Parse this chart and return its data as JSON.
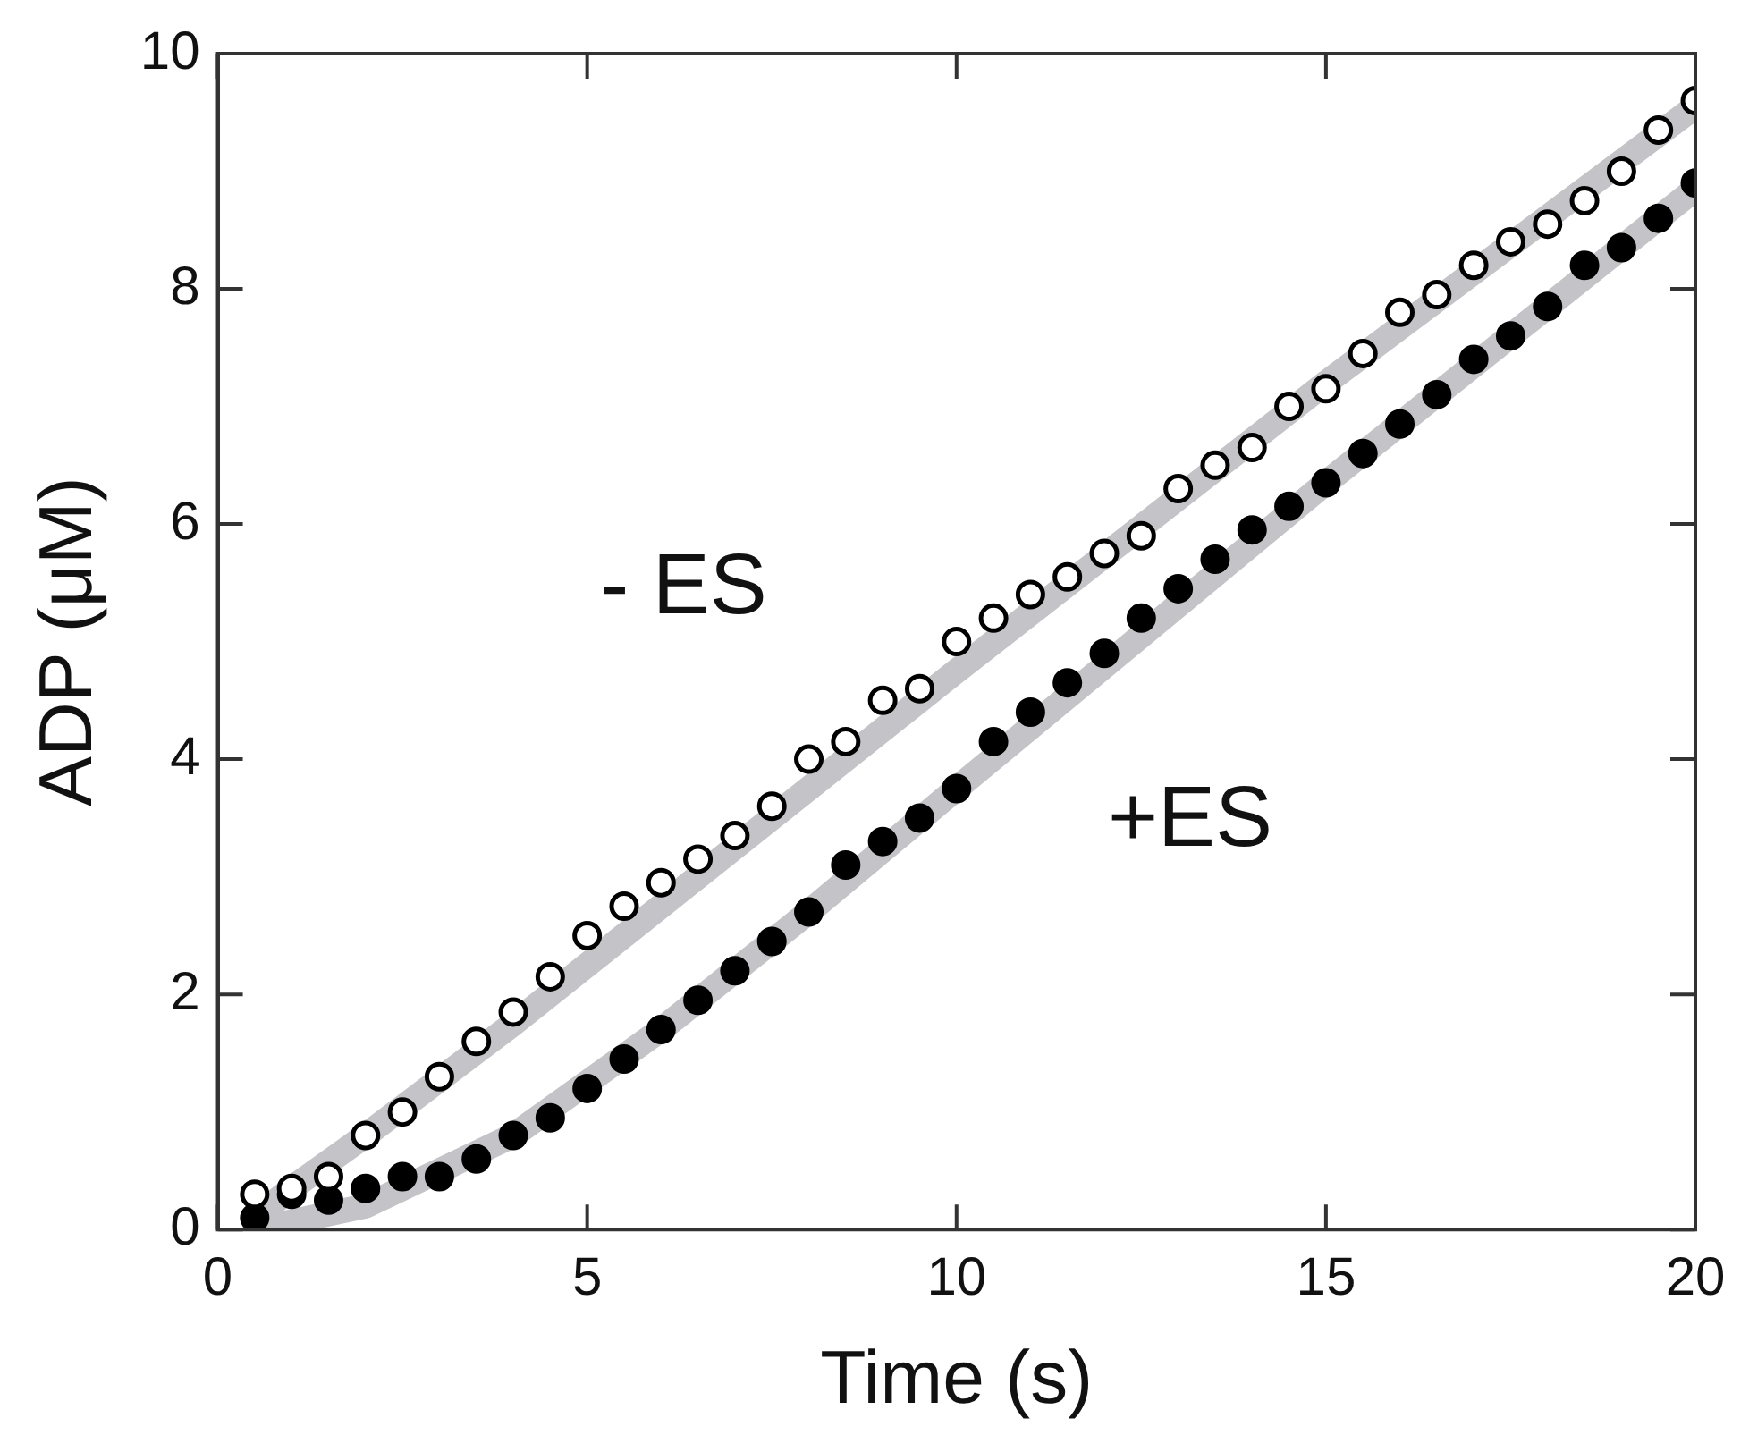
{
  "chart_data": {
    "type": "scatter",
    "xlabel": "Time (s)",
    "ylabel": "ADP (μM)",
    "xlim": [
      0,
      20
    ],
    "xticks": [
      0,
      5,
      10,
      15,
      20
    ],
    "ylim": [
      0,
      10
    ],
    "yticks": [
      0,
      2,
      4,
      6,
      8,
      10
    ],
    "grid": false,
    "legend": false,
    "marker": "circle",
    "series": [
      {
        "type": "line",
        "marker": "none",
        "color": "#c4c4c8",
        "x": [
          0.5,
          1,
          2,
          4,
          10,
          15,
          20
        ],
        "values": [
          0.1,
          0.35,
          0.8,
          1.75,
          4.75,
          7.2,
          9.55
        ]
      },
      {
        "type": "line",
        "marker": "none",
        "color": "#c4c4c8",
        "x": [
          0.5,
          2,
          4,
          6,
          8,
          10,
          15,
          20
        ],
        "values": [
          0,
          0.2,
          0.8,
          1.7,
          2.7,
          3.75,
          6.35,
          8.85
        ]
      },
      {
        "name": "- ES",
        "color": "#ffffff",
        "x": [
          0.5,
          1,
          1.5,
          2,
          2.5,
          3,
          3.5,
          4,
          4.5,
          5,
          5.5,
          6,
          6.5,
          7,
          7.5,
          8,
          8.5,
          9,
          9.5,
          10,
          10.5,
          11,
          11.5,
          12,
          12.5,
          13,
          13.5,
          14,
          14.5,
          15,
          15.5,
          16,
          16.5,
          17,
          17.5,
          18,
          18.5,
          19,
          19.5,
          20
        ],
        "values": [
          0.3,
          0.35,
          0.45,
          0.8,
          1.0,
          1.3,
          1.6,
          1.85,
          2.15,
          2.5,
          2.75,
          2.95,
          3.15,
          3.35,
          3.6,
          4.0,
          4.15,
          4.5,
          4.6,
          5.0,
          5.2,
          5.4,
          5.55,
          5.75,
          5.9,
          6.3,
          6.5,
          6.65,
          7.0,
          7.15,
          7.45,
          7.8,
          7.95,
          8.2,
          8.4,
          8.55,
          8.75,
          9.0,
          9.35,
          9.6
        ]
      },
      {
        "name": "+ES",
        "color": "#000000",
        "x": [
          0.5,
          1,
          1.5,
          2,
          2.5,
          3,
          3.5,
          4,
          4.5,
          5,
          5.5,
          6,
          6.5,
          7,
          7.5,
          8,
          8.5,
          9,
          9.5,
          10,
          10.5,
          11,
          11.5,
          12,
          12.5,
          13,
          13.5,
          14,
          14.5,
          15,
          15.5,
          16,
          16.5,
          17,
          17.5,
          18,
          18.5,
          19,
          19.5,
          20
        ],
        "values": [
          0.1,
          0.3,
          0.25,
          0.35,
          0.45,
          0.45,
          0.6,
          0.8,
          0.95,
          1.2,
          1.45,
          1.7,
          1.95,
          2.2,
          2.45,
          2.7,
          3.1,
          3.3,
          3.5,
          3.75,
          4.15,
          4.4,
          4.65,
          4.9,
          5.2,
          5.45,
          5.7,
          5.95,
          6.15,
          6.35,
          6.6,
          6.85,
          7.1,
          7.4,
          7.6,
          7.85,
          8.2,
          8.35,
          8.6,
          8.9
        ]
      }
    ]
  }
}
